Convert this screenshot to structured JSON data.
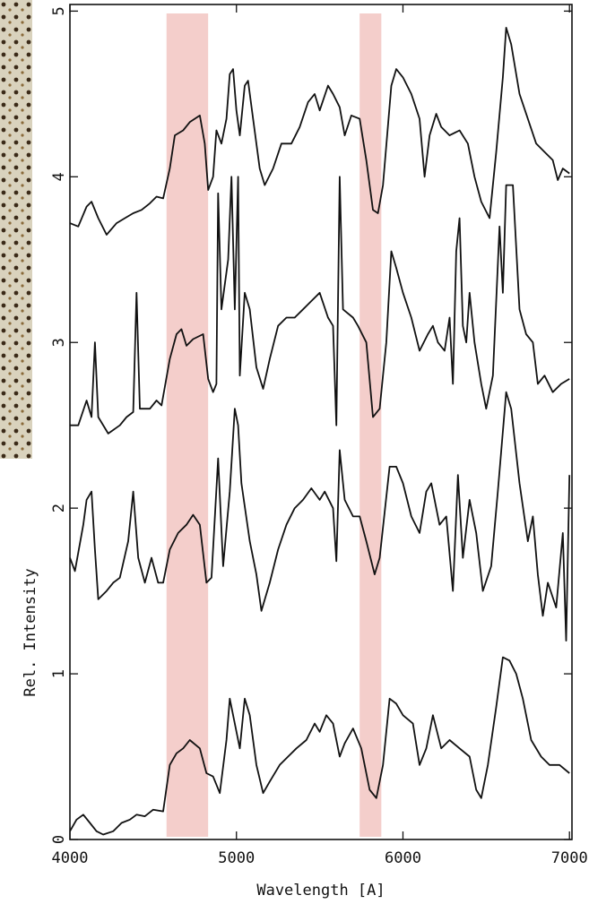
{
  "chart_data": {
    "type": "line",
    "xlabel": "Wavelength [A]",
    "ylabel": "Rel. Intensity",
    "xlim": [
      4000,
      7015
    ],
    "ylim": [
      0,
      5.04
    ],
    "xticks": [
      4000,
      5000,
      6000,
      7000
    ],
    "yticks": [
      0,
      1,
      2,
      3,
      4,
      5
    ],
    "highlight_bands": [
      [
        4580,
        4830
      ],
      [
        5740,
        5870
      ]
    ],
    "highlight_color": "#f2c6c2",
    "series": [
      {
        "color": "#111111",
        "x": [
          4000,
          4050,
          4100,
          4130,
          4170,
          4220,
          4280,
          4330,
          4380,
          4430,
          4480,
          4520,
          4560,
          4600,
          4630,
          4680,
          4720,
          4780,
          4810,
          4830,
          4860,
          4880,
          4910,
          4940,
          4960,
          4980,
          5000,
          5020,
          5050,
          5070,
          5100,
          5140,
          5170,
          5220,
          5270,
          5330,
          5380,
          5430,
          5470,
          5500,
          5550,
          5580,
          5620,
          5650,
          5690,
          5740,
          5780,
          5820,
          5850,
          5880,
          5930,
          5960,
          6000,
          6050,
          6100,
          6130,
          6160,
          6200,
          6230,
          6280,
          6340,
          6390,
          6430,
          6470,
          6520,
          6560,
          6600,
          6620,
          6650,
          6700,
          6750,
          6800,
          6850,
          6900,
          6930,
          6960,
          7000
        ],
        "values": [
          3.72,
          3.7,
          3.82,
          3.85,
          3.75,
          3.65,
          3.72,
          3.75,
          3.78,
          3.8,
          3.84,
          3.88,
          3.87,
          4.05,
          4.25,
          4.28,
          4.33,
          4.37,
          4.2,
          3.92,
          4.0,
          4.28,
          4.2,
          4.35,
          4.62,
          4.65,
          4.4,
          4.25,
          4.55,
          4.58,
          4.35,
          4.05,
          3.95,
          4.05,
          4.2,
          4.2,
          4.3,
          4.45,
          4.5,
          4.4,
          4.55,
          4.5,
          4.42,
          4.25,
          4.37,
          4.35,
          4.1,
          3.8,
          3.78,
          3.95,
          4.55,
          4.65,
          4.6,
          4.5,
          4.35,
          4.0,
          4.25,
          4.38,
          4.3,
          4.25,
          4.28,
          4.2,
          4.0,
          3.85,
          3.75,
          4.15,
          4.6,
          4.9,
          4.8,
          4.5,
          4.35,
          4.2,
          4.15,
          4.1,
          3.98,
          4.05,
          4.02
        ]
      },
      {
        "color": "#111111",
        "x": [
          4000,
          4050,
          4100,
          4130,
          4150,
          4170,
          4230,
          4300,
          4340,
          4380,
          4400,
          4420,
          4480,
          4520,
          4550,
          4600,
          4640,
          4670,
          4700,
          4740,
          4800,
          4830,
          4860,
          4880,
          4890,
          4910,
          4950,
          4970,
          4990,
          5010,
          5020,
          5050,
          5080,
          5120,
          5160,
          5200,
          5250,
          5300,
          5350,
          5400,
          5450,
          5500,
          5550,
          5580,
          5600,
          5620,
          5640,
          5700,
          5730,
          5780,
          5820,
          5860,
          5900,
          5930,
          5960,
          6000,
          6050,
          6100,
          6150,
          6180,
          6210,
          6250,
          6280,
          6300,
          6320,
          6340,
          6360,
          6380,
          6400,
          6430,
          6470,
          6500,
          6540,
          6580,
          6600,
          6620,
          6660,
          6700,
          6740,
          6780,
          6810,
          6850,
          6900,
          6950,
          7000
        ],
        "values": [
          2.5,
          2.5,
          2.65,
          2.55,
          3.0,
          2.55,
          2.45,
          2.5,
          2.55,
          2.58,
          3.3,
          2.6,
          2.6,
          2.65,
          2.62,
          2.9,
          3.05,
          3.08,
          2.98,
          3.02,
          3.05,
          2.78,
          2.7,
          2.75,
          3.9,
          3.2,
          3.5,
          4.0,
          3.2,
          4.0,
          2.8,
          3.3,
          3.2,
          2.85,
          2.72,
          2.9,
          3.1,
          3.15,
          3.15,
          3.2,
          3.25,
          3.3,
          3.15,
          3.1,
          2.5,
          4.0,
          3.2,
          3.15,
          3.1,
          3.0,
          2.55,
          2.6,
          3.0,
          3.55,
          3.45,
          3.3,
          3.15,
          2.95,
          3.05,
          3.1,
          3.0,
          2.95,
          3.15,
          2.75,
          3.55,
          3.75,
          3.1,
          3.0,
          3.3,
          3.0,
          2.75,
          2.6,
          2.8,
          3.7,
          3.3,
          3.95,
          3.95,
          3.2,
          3.05,
          3.0,
          2.75,
          2.8,
          2.7,
          2.75,
          2.78
        ]
      },
      {
        "color": "#111111",
        "x": [
          4000,
          4030,
          4080,
          4100,
          4130,
          4150,
          4170,
          4220,
          4260,
          4300,
          4350,
          4380,
          4410,
          4450,
          4490,
          4530,
          4560,
          4600,
          4650,
          4700,
          4740,
          4780,
          4820,
          4850,
          4890,
          4920,
          4960,
          4990,
          5010,
          5030,
          5080,
          5120,
          5150,
          5200,
          5250,
          5300,
          5350,
          5400,
          5450,
          5500,
          5530,
          5580,
          5600,
          5620,
          5650,
          5700,
          5740,
          5780,
          5830,
          5860,
          5920,
          5960,
          6000,
          6050,
          6100,
          6140,
          6170,
          6220,
          6260,
          6300,
          6330,
          6360,
          6400,
          6440,
          6480,
          6530,
          6570,
          6620,
          6650,
          6700,
          6750,
          6780,
          6810,
          6840,
          6870,
          6920,
          6960,
          6980,
          7000
        ],
        "values": [
          1.7,
          1.62,
          1.9,
          2.05,
          2.1,
          1.75,
          1.45,
          1.5,
          1.55,
          1.58,
          1.8,
          2.1,
          1.7,
          1.55,
          1.7,
          1.55,
          1.55,
          1.75,
          1.85,
          1.9,
          1.96,
          1.9,
          1.55,
          1.58,
          2.3,
          1.65,
          2.1,
          2.6,
          2.5,
          2.15,
          1.8,
          1.6,
          1.38,
          1.55,
          1.75,
          1.9,
          2.0,
          2.05,
          2.12,
          2.05,
          2.1,
          2.0,
          1.68,
          2.35,
          2.05,
          1.95,
          1.95,
          1.8,
          1.6,
          1.7,
          2.25,
          2.25,
          2.15,
          1.95,
          1.85,
          2.1,
          2.15,
          1.9,
          1.95,
          1.5,
          2.2,
          1.7,
          2.05,
          1.85,
          1.5,
          1.65,
          2.1,
          2.7,
          2.6,
          2.15,
          1.8,
          1.95,
          1.6,
          1.35,
          1.55,
          1.4,
          1.85,
          1.2,
          2.2
        ]
      },
      {
        "color": "#111111",
        "x": [
          4000,
          4040,
          4080,
          4120,
          4160,
          4200,
          4260,
          4310,
          4360,
          4400,
          4450,
          4500,
          4560,
          4600,
          4640,
          4680,
          4720,
          4780,
          4820,
          4860,
          4900,
          4940,
          4960,
          4990,
          5020,
          5050,
          5080,
          5120,
          5160,
          5200,
          5260,
          5310,
          5360,
          5420,
          5470,
          5500,
          5540,
          5580,
          5620,
          5650,
          5700,
          5750,
          5800,
          5840,
          5880,
          5920,
          5960,
          6000,
          6060,
          6100,
          6140,
          6180,
          6230,
          6280,
          6340,
          6400,
          6440,
          6470,
          6510,
          6560,
          6600,
          6640,
          6680,
          6720,
          6770,
          6830,
          6880,
          6940,
          7000
        ],
        "values": [
          0.05,
          0.12,
          0.15,
          0.1,
          0.05,
          0.03,
          0.05,
          0.1,
          0.12,
          0.15,
          0.14,
          0.18,
          0.17,
          0.45,
          0.52,
          0.55,
          0.6,
          0.55,
          0.4,
          0.38,
          0.28,
          0.6,
          0.85,
          0.7,
          0.55,
          0.85,
          0.75,
          0.45,
          0.28,
          0.35,
          0.45,
          0.5,
          0.55,
          0.6,
          0.7,
          0.65,
          0.75,
          0.7,
          0.5,
          0.58,
          0.67,
          0.55,
          0.3,
          0.25,
          0.45,
          0.85,
          0.82,
          0.75,
          0.7,
          0.45,
          0.55,
          0.75,
          0.55,
          0.6,
          0.55,
          0.5,
          0.3,
          0.25,
          0.45,
          0.8,
          1.1,
          1.08,
          1.0,
          0.85,
          0.6,
          0.5,
          0.45,
          0.45,
          0.4
        ]
      }
    ]
  }
}
